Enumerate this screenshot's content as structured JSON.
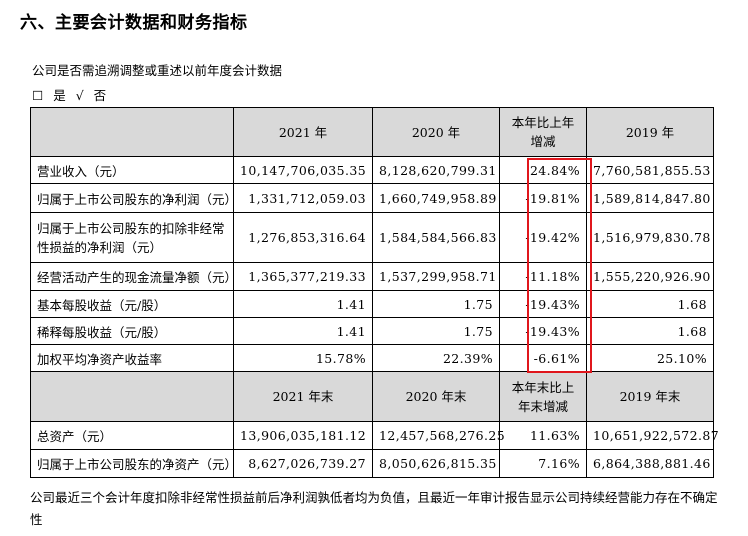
{
  "section_title": "六、主要会计数据和财务指标",
  "question": "公司是否需追溯调整或重述以前年度会计数据",
  "answer": {
    "yes_box": "☐",
    "yes": "是",
    "no_mark": "√",
    "no": "否"
  },
  "table1": {
    "headers": [
      "",
      "2021 年",
      "2020 年",
      "本年比上年增减",
      "2019 年"
    ],
    "rows": [
      [
        "营业收入（元）",
        "10,147,706,035.35",
        "8,128,620,799.31",
        "24.84%",
        "7,760,581,855.53"
      ],
      [
        "归属于上市公司股东的净利润（元）",
        "1,331,712,059.03",
        "1,660,749,958.89",
        "-19.81%",
        "1,589,814,847.80"
      ],
      [
        "归属于上市公司股东的扣除非经常性损益的净利润（元）",
        "1,276,853,316.64",
        "1,584,584,566.83",
        "-19.42%",
        "1,516,979,830.78"
      ],
      [
        "经营活动产生的现金流量净额（元）",
        "1,365,377,219.33",
        "1,537,299,958.71",
        "-11.18%",
        "1,555,220,926.90"
      ],
      [
        "基本每股收益（元/股）",
        "1.41",
        "1.75",
        "-19.43%",
        "1.68"
      ],
      [
        "稀释每股收益（元/股）",
        "1.41",
        "1.75",
        "-19.43%",
        "1.68"
      ],
      [
        "加权平均净资产收益率",
        "15.78%",
        "22.39%",
        "-6.61%",
        "25.10%"
      ]
    ]
  },
  "table2": {
    "headers": [
      "",
      "2021 年末",
      "2020 年末",
      "本年末比上年末增减",
      "2019 年末"
    ],
    "rows": [
      [
        "总资产（元）",
        "13,906,035,181.12",
        "12,457,568,276.25",
        "11.63%",
        "10,651,922,572.87"
      ],
      [
        "归属于上市公司股东的净资产（元）",
        "8,627,026,739.27",
        "8,050,626,815.35",
        "7.16%",
        "6,864,388,881.46"
      ]
    ]
  },
  "footnote": "公司最近三个会计年度扣除非经常性损益前后净利润孰低者均为负值，且最近一年审计报告显示公司持续经营能力存在不确定性",
  "highlight_color": "#e0161c"
}
